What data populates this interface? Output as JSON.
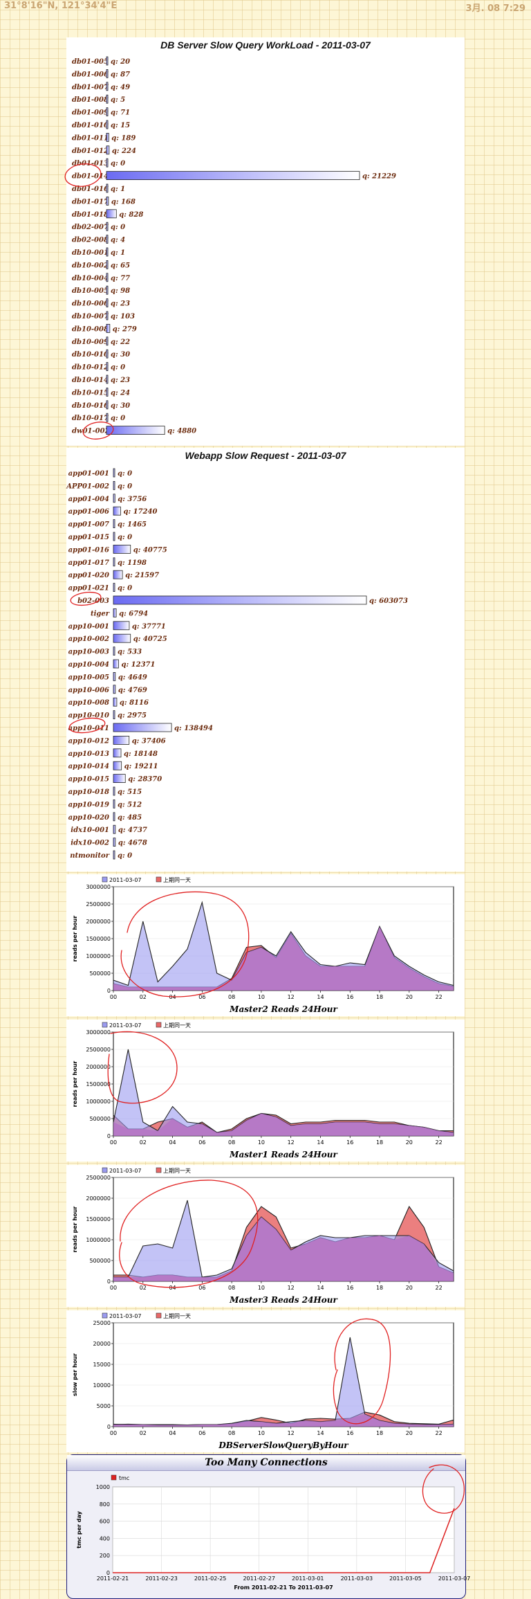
{
  "status_bar": {
    "coords": "31°8'16\"N, 121°34'4\"E",
    "datetime": "3月. 08 7:29"
  },
  "colors": {
    "bar_fill": "#6b6bf2",
    "series_today": "#9b9bf0",
    "series_prev": "#e86868",
    "overlap": "#b36fc7",
    "annotation": "#e02020"
  },
  "chart_data": [
    {
      "type": "bar",
      "orientation": "horizontal",
      "title": "DB Server Slow Query WorkLoad - 2011-03-07",
      "value_prefix": "q: ",
      "categories": [
        "db01-005",
        "db01-006",
        "db01-007",
        "db01-008",
        "db01-009",
        "db01-010",
        "db01-011",
        "db01-012",
        "db01-013",
        "db01-014",
        "db01-016",
        "db01-017",
        "db01-018",
        "db02-007",
        "db02-008",
        "db10-001",
        "db10-002",
        "db10-004",
        "db10-005",
        "db10-006",
        "db10-007",
        "db10-008",
        "db10-009",
        "db10-010",
        "db10-012",
        "db10-014",
        "db10-015",
        "db10-016",
        "db10-017",
        "dw01-002"
      ],
      "values": [
        20,
        87,
        49,
        5,
        71,
        15,
        189,
        224,
        0,
        21229,
        1,
        168,
        828,
        0,
        4,
        1,
        65,
        77,
        98,
        23,
        103,
        279,
        22,
        30,
        0,
        23,
        24,
        30,
        0,
        4880
      ]
    },
    {
      "type": "bar",
      "orientation": "horizontal",
      "title": "Webapp Slow Request - 2011-03-07",
      "value_prefix": "q: ",
      "categories": [
        "app01-001",
        "APP01-002",
        "app01-004",
        "app01-006",
        "app01-007",
        "app01-015",
        "app01-016",
        "app01-017",
        "app01-020",
        "app01-021",
        "b02-003",
        "tiger",
        "app10-001",
        "app10-002",
        "app10-003",
        "app10-004",
        "app10-005",
        "app10-006",
        "app10-008",
        "app10-010",
        "app10-011",
        "app10-012",
        "app10-013",
        "app10-014",
        "app10-015",
        "app10-018",
        "app10-019",
        "app10-020",
        "idx10-001",
        "idx10-002",
        "ntmonitor"
      ],
      "values": [
        0,
        0,
        3756,
        17240,
        1465,
        0,
        40775,
        1198,
        21597,
        0,
        603073,
        6794,
        37771,
        40725,
        533,
        12371,
        4649,
        4769,
        8116,
        2975,
        138494,
        37406,
        18148,
        19211,
        28370,
        515,
        512,
        485,
        4737,
        4678,
        0
      ]
    },
    {
      "type": "area",
      "title": "Master2 Reads 24Hour",
      "ylabel": "reads per hour",
      "legend": [
        "2011-03-07",
        "上期同一天"
      ],
      "legend_position": "top-left",
      "ylim": [
        0,
        3000000
      ],
      "yticks": [
        0,
        500000,
        1000000,
        1500000,
        2000000,
        2500000,
        3000000
      ],
      "xticks": [
        "00",
        "02",
        "04",
        "06",
        "08",
        "10",
        "12",
        "14",
        "16",
        "18",
        "20",
        "22"
      ],
      "x": [
        0,
        1,
        2,
        3,
        4,
        5,
        6,
        7,
        8,
        9,
        10,
        11,
        12,
        13,
        14,
        15,
        16,
        17,
        18,
        19,
        20,
        21,
        22,
        23
      ],
      "series": [
        {
          "name": "2011-03-07",
          "values": [
            300000,
            150000,
            2000000,
            250000,
            700000,
            1200000,
            2550000,
            500000,
            300000,
            1100000,
            1250000,
            1000000,
            1700000,
            1100000,
            750000,
            700000,
            800000,
            750000,
            1850000,
            1000000,
            700000,
            450000,
            250000,
            150000
          ]
        },
        {
          "name": "上期同一天",
          "values": [
            200000,
            100000,
            100000,
            100000,
            100000,
            100000,
            100000,
            100000,
            350000,
            1250000,
            1300000,
            950000,
            1650000,
            1000000,
            700000,
            700000,
            700000,
            700000,
            1850000,
            950000,
            650000,
            400000,
            200000,
            120000
          ]
        }
      ]
    },
    {
      "type": "area",
      "title": "Master1 Reads 24Hour",
      "ylabel": "reads per hour",
      "legend": [
        "2011-03-07",
        "上期同一天"
      ],
      "legend_position": "top-left",
      "ylim": [
        0,
        3000000
      ],
      "yticks": [
        0,
        500000,
        1000000,
        1500000,
        2000000,
        2500000,
        3000000
      ],
      "xticks": [
        "00",
        "02",
        "04",
        "06",
        "08",
        "10",
        "12",
        "14",
        "16",
        "18",
        "20",
        "22"
      ],
      "x": [
        0,
        1,
        2,
        3,
        4,
        5,
        6,
        7,
        8,
        9,
        10,
        11,
        12,
        13,
        14,
        15,
        16,
        17,
        18,
        19,
        20,
        21,
        22,
        23
      ],
      "series": [
        {
          "name": "2011-03-07",
          "values": [
            400000,
            2500000,
            400000,
            150000,
            850000,
            400000,
            350000,
            100000,
            150000,
            450000,
            650000,
            550000,
            300000,
            350000,
            350000,
            400000,
            400000,
            400000,
            350000,
            350000,
            300000,
            250000,
            150000,
            100000
          ]
        },
        {
          "name": "上期同一天",
          "values": [
            600000,
            200000,
            200000,
            400000,
            500000,
            250000,
            400000,
            100000,
            200000,
            500000,
            650000,
            600000,
            350000,
            400000,
            400000,
            450000,
            450000,
            450000,
            400000,
            400000,
            300000,
            250000,
            150000,
            150000
          ]
        }
      ]
    },
    {
      "type": "area",
      "title": "Master3 Reads 24Hour",
      "ylabel": "reads per hour",
      "legend": [
        "2011-03-07",
        "上期同一天"
      ],
      "legend_position": "top-left",
      "ylim": [
        0,
        2500000
      ],
      "yticks": [
        0,
        500000,
        1000000,
        1500000,
        2000000,
        2500000
      ],
      "xticks": [
        "00",
        "02",
        "04",
        "06",
        "08",
        "10",
        "12",
        "14",
        "16",
        "18",
        "20",
        "22"
      ],
      "x": [
        0,
        1,
        2,
        3,
        4,
        5,
        6,
        7,
        8,
        9,
        10,
        11,
        12,
        13,
        14,
        15,
        16,
        17,
        18,
        19,
        20,
        21,
        22,
        23
      ],
      "series": [
        {
          "name": "2011-03-07",
          "values": [
            100000,
            100000,
            850000,
            900000,
            800000,
            1950000,
            100000,
            150000,
            300000,
            1100000,
            1550000,
            1250000,
            750000,
            950000,
            1100000,
            1050000,
            1050000,
            1100000,
            1100000,
            1100000,
            1100000,
            900000,
            450000,
            250000
          ]
        },
        {
          "name": "上期同一天",
          "values": [
            150000,
            150000,
            100000,
            150000,
            150000,
            100000,
            100000,
            100000,
            250000,
            1300000,
            1800000,
            1550000,
            800000,
            900000,
            1050000,
            950000,
            1050000,
            1050000,
            1100000,
            1000000,
            1800000,
            1300000,
            350000,
            200000
          ]
        }
      ]
    },
    {
      "type": "area",
      "title": "DBServerSlowQueryByHour",
      "ylabel": "slow per hour",
      "legend": [
        "2011-03-07",
        "上期同一天"
      ],
      "legend_position": "top-left",
      "ylim": [
        0,
        25000
      ],
      "yticks": [
        0,
        5000,
        10000,
        15000,
        20000,
        25000
      ],
      "xticks": [
        "00",
        "02",
        "04",
        "06",
        "08",
        "10",
        "12",
        "14",
        "16",
        "18",
        "20",
        "22"
      ],
      "x": [
        0,
        1,
        2,
        3,
        4,
        5,
        6,
        7,
        8,
        9,
        10,
        11,
        12,
        13,
        14,
        15,
        16,
        17,
        18,
        19,
        20,
        21,
        22,
        23
      ],
      "series": [
        {
          "name": "2011-03-07",
          "values": [
            500,
            600,
            500,
            400,
            400,
            400,
            500,
            500,
            800,
            1500,
            1200,
            800,
            1200,
            1500,
            1200,
            1500,
            21500,
            3000,
            1500,
            800,
            600,
            500,
            500,
            600
          ]
        },
        {
          "name": "上期同一天",
          "values": [
            600,
            500,
            500,
            500,
            500,
            400,
            500,
            500,
            700,
            1300,
            2200,
            1600,
            800,
            1800,
            2000,
            1800,
            2000,
            3500,
            2800,
            1200,
            800,
            700,
            600,
            1600
          ]
        }
      ]
    },
    {
      "type": "line",
      "title": "Too Many Connections",
      "ylabel": "tmc per day",
      "xlabel": "From 2011-02-21 To 2011-03-07",
      "legend": [
        "tmc"
      ],
      "legend_position": "top-left",
      "ylim": [
        0,
        1000
      ],
      "yticks": [
        0,
        200,
        400,
        600,
        800,
        1000
      ],
      "xticks": [
        "2011-02-21",
        "2011-02-23",
        "2011-02-25",
        "2011-02-27",
        "2011-03-01",
        "2011-03-03",
        "2011-03-05",
        "2011-03-07"
      ],
      "series": [
        {
          "name": "tmc",
          "values": [
            0,
            0,
            0,
            0,
            0,
            0,
            0,
            0,
            0,
            0,
            0,
            0,
            0,
            0,
            750
          ]
        }
      ]
    }
  ]
}
